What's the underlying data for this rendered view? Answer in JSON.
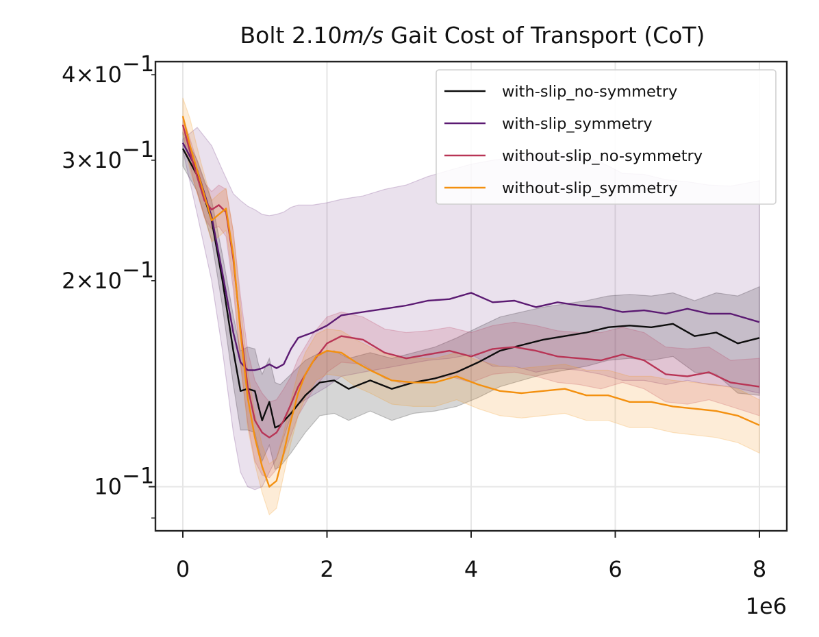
{
  "chart_data": {
    "type": "line",
    "title": "Bolt 2.10m/s Gait Cost of Transport (CoT)",
    "title_parts": {
      "prefix": "Bolt 2.10",
      "unit": "m/s",
      "suffix": " Gait Cost of Transport (CoT)"
    },
    "xlabel": "",
    "ylabel": "",
    "x_offset_label": "1e6",
    "x_scale": 1000000,
    "xlim": [
      -0.38,
      8.38
    ],
    "ylim": [
      0.0862,
      0.418
    ],
    "yscale": "log",
    "x_ticks": [
      {
        "value": 0,
        "label": "0"
      },
      {
        "value": 2,
        "label": "2"
      },
      {
        "value": 4,
        "label": "4"
      },
      {
        "value": 6,
        "label": "6"
      },
      {
        "value": 8,
        "label": "8"
      }
    ],
    "y_major_ticks": [
      {
        "value": 0.1,
        "mantissa": "",
        "exp": "−1"
      }
    ],
    "y_minor_labeled_ticks": [
      {
        "value": 0.2,
        "mantissa": "2×",
        "exp": "−1"
      },
      {
        "value": 0.3,
        "mantissa": "3×",
        "exp": "−1"
      },
      {
        "value": 0.4,
        "mantissa": "4×",
        "exp": "−1"
      }
    ],
    "y_minor_unlabeled_ticks": [
      0.09,
      0.5
    ],
    "grid": true,
    "legend_position": "top-right",
    "series": [
      {
        "name": "with-slip_no-symmetry",
        "color": "#0d0d0d",
        "x": [
          0,
          0.2,
          0.4,
          0.55,
          0.7,
          0.8,
          0.9,
          1.0,
          1.05,
          1.1,
          1.2,
          1.28,
          1.35,
          1.5,
          1.7,
          1.9,
          2.1,
          2.3,
          2.6,
          2.9,
          3.2,
          3.5,
          3.8,
          4.1,
          4.4,
          4.7,
          5.0,
          5.3,
          5.6,
          5.9,
          6.2,
          6.5,
          6.8,
          7.1,
          7.4,
          7.7,
          8.0
        ],
        "values": [
          0.312,
          0.285,
          0.245,
          0.2,
          0.158,
          0.138,
          0.139,
          0.138,
          0.131,
          0.125,
          0.133,
          0.122,
          0.123,
          0.128,
          0.136,
          0.142,
          0.143,
          0.139,
          0.143,
          0.139,
          0.142,
          0.144,
          0.147,
          0.152,
          0.158,
          0.161,
          0.164,
          0.166,
          0.168,
          0.171,
          0.172,
          0.171,
          0.173,
          0.166,
          0.168,
          0.162,
          0.165
        ],
        "band_upper": [
          0.33,
          0.3,
          0.262,
          0.218,
          0.178,
          0.158,
          0.16,
          0.159,
          0.151,
          0.146,
          0.154,
          0.142,
          0.141,
          0.146,
          0.153,
          0.157,
          0.158,
          0.154,
          0.157,
          0.154,
          0.157,
          0.16,
          0.165,
          0.171,
          0.177,
          0.18,
          0.183,
          0.185,
          0.187,
          0.19,
          0.191,
          0.19,
          0.192,
          0.187,
          0.192,
          0.19,
          0.196
        ],
        "band_lower": [
          0.294,
          0.27,
          0.229,
          0.183,
          0.141,
          0.121,
          0.121,
          0.12,
          0.114,
          0.109,
          0.115,
          0.106,
          0.107,
          0.112,
          0.12,
          0.127,
          0.128,
          0.125,
          0.129,
          0.125,
          0.128,
          0.129,
          0.131,
          0.135,
          0.14,
          0.143,
          0.146,
          0.148,
          0.15,
          0.153,
          0.154,
          0.153,
          0.155,
          0.147,
          0.146,
          0.137,
          0.136
        ]
      },
      {
        "name": "with-slip_symmetry",
        "color": "#5b1a72",
        "x": [
          0,
          0.2,
          0.4,
          0.55,
          0.7,
          0.8,
          0.9,
          1.0,
          1.1,
          1.2,
          1.3,
          1.4,
          1.5,
          1.6,
          1.8,
          2.0,
          2.2,
          2.5,
          2.8,
          3.1,
          3.4,
          3.7,
          4.0,
          4.3,
          4.6,
          4.9,
          5.2,
          5.5,
          5.8,
          6.1,
          6.4,
          6.7,
          7.0,
          7.3,
          7.6,
          8.0
        ],
        "values": [
          0.318,
          0.29,
          0.248,
          0.205,
          0.168,
          0.152,
          0.148,
          0.148,
          0.149,
          0.151,
          0.149,
          0.151,
          0.159,
          0.165,
          0.168,
          0.172,
          0.178,
          0.18,
          0.182,
          0.184,
          0.187,
          0.188,
          0.192,
          0.186,
          0.187,
          0.183,
          0.186,
          0.184,
          0.183,
          0.18,
          0.181,
          0.179,
          0.182,
          0.179,
          0.179,
          0.174
        ],
        "band_upper": [
          0.322,
          0.335,
          0.315,
          0.29,
          0.268,
          0.262,
          0.257,
          0.254,
          0.25,
          0.249,
          0.25,
          0.252,
          0.256,
          0.258,
          0.258,
          0.26,
          0.263,
          0.266,
          0.272,
          0.276,
          0.284,
          0.29,
          0.296,
          0.3,
          0.303,
          0.307,
          0.308,
          0.305,
          0.298,
          0.287,
          0.286,
          0.281,
          0.279,
          0.276,
          0.275,
          0.28
        ],
        "band_lower": [
          0.31,
          0.25,
          0.2,
          0.158,
          0.12,
          0.105,
          0.1,
          0.099,
          0.1,
          0.105,
          0.11,
          0.118,
          0.127,
          0.132,
          0.136,
          0.14,
          0.145,
          0.147,
          0.149,
          0.151,
          0.153,
          0.154,
          0.156,
          0.15,
          0.15,
          0.147,
          0.149,
          0.148,
          0.146,
          0.143,
          0.143,
          0.141,
          0.143,
          0.141,
          0.14,
          0.137
        ]
      },
      {
        "name": "without-slip_no-symmetry",
        "color": "#b83455",
        "x": [
          0,
          0.15,
          0.3,
          0.4,
          0.5,
          0.6,
          0.7,
          0.8,
          0.9,
          1.0,
          1.1,
          1.2,
          1.3,
          1.4,
          1.5,
          1.6,
          1.8,
          2.0,
          2.2,
          2.5,
          2.8,
          3.1,
          3.4,
          3.7,
          4.0,
          4.3,
          4.6,
          4.9,
          5.2,
          5.5,
          5.8,
          6.1,
          6.4,
          6.7,
          7.0,
          7.3,
          7.6,
          8.0
        ],
        "values": [
          0.338,
          0.295,
          0.262,
          0.254,
          0.258,
          0.252,
          0.215,
          0.17,
          0.14,
          0.125,
          0.12,
          0.118,
          0.12,
          0.125,
          0.132,
          0.14,
          0.152,
          0.162,
          0.166,
          0.164,
          0.157,
          0.154,
          0.156,
          0.158,
          0.155,
          0.159,
          0.16,
          0.158,
          0.155,
          0.154,
          0.153,
          0.156,
          0.153,
          0.146,
          0.145,
          0.147,
          0.142,
          0.14
        ],
        "band_upper": [
          0.348,
          0.31,
          0.278,
          0.27,
          0.276,
          0.272,
          0.236,
          0.19,
          0.158,
          0.143,
          0.137,
          0.133,
          0.134,
          0.139,
          0.145,
          0.154,
          0.167,
          0.177,
          0.18,
          0.177,
          0.17,
          0.168,
          0.169,
          0.171,
          0.168,
          0.172,
          0.174,
          0.172,
          0.169,
          0.168,
          0.168,
          0.171,
          0.168,
          0.16,
          0.159,
          0.16,
          0.153,
          0.154
        ],
        "band_lower": [
          0.328,
          0.28,
          0.247,
          0.238,
          0.24,
          0.232,
          0.194,
          0.151,
          0.124,
          0.109,
          0.104,
          0.103,
          0.106,
          0.111,
          0.119,
          0.127,
          0.138,
          0.147,
          0.152,
          0.151,
          0.144,
          0.141,
          0.143,
          0.145,
          0.142,
          0.146,
          0.147,
          0.145,
          0.142,
          0.141,
          0.139,
          0.142,
          0.139,
          0.133,
          0.132,
          0.134,
          0.131,
          0.127
        ]
      },
      {
        "name": "without-slip_symmetry",
        "color": "#f3900f",
        "x": [
          0,
          0.1,
          0.25,
          0.4,
          0.5,
          0.6,
          0.7,
          0.8,
          0.9,
          1.0,
          1.1,
          1.2,
          1.3,
          1.4,
          1.5,
          1.6,
          1.7,
          1.85,
          2.0,
          2.2,
          2.4,
          2.6,
          2.9,
          3.2,
          3.5,
          3.8,
          4.1,
          4.4,
          4.7,
          5.0,
          5.3,
          5.6,
          5.9,
          6.2,
          6.5,
          6.8,
          7.1,
          7.4,
          7.7,
          8.0
        ],
        "values": [
          0.348,
          0.315,
          0.278,
          0.245,
          0.25,
          0.255,
          0.218,
          0.168,
          0.135,
          0.118,
          0.107,
          0.1,
          0.102,
          0.112,
          0.125,
          0.137,
          0.146,
          0.155,
          0.158,
          0.157,
          0.152,
          0.148,
          0.143,
          0.142,
          0.142,
          0.145,
          0.141,
          0.138,
          0.137,
          0.138,
          0.139,
          0.136,
          0.136,
          0.133,
          0.133,
          0.131,
          0.13,
          0.129,
          0.127,
          0.123
        ],
        "band_upper": [
          0.37,
          0.345,
          0.298,
          0.262,
          0.268,
          0.273,
          0.236,
          0.184,
          0.148,
          0.128,
          0.115,
          0.108,
          0.11,
          0.12,
          0.134,
          0.147,
          0.157,
          0.167,
          0.17,
          0.169,
          0.164,
          0.16,
          0.155,
          0.154,
          0.154,
          0.157,
          0.153,
          0.15,
          0.149,
          0.15,
          0.151,
          0.148,
          0.148,
          0.145,
          0.145,
          0.143,
          0.142,
          0.141,
          0.139,
          0.134
        ],
        "band_lower": [
          0.328,
          0.29,
          0.258,
          0.228,
          0.232,
          0.237,
          0.2,
          0.152,
          0.122,
          0.108,
          0.098,
          0.091,
          0.093,
          0.104,
          0.116,
          0.127,
          0.135,
          0.143,
          0.146,
          0.145,
          0.14,
          0.137,
          0.132,
          0.131,
          0.131,
          0.134,
          0.13,
          0.127,
          0.126,
          0.127,
          0.128,
          0.125,
          0.125,
          0.122,
          0.122,
          0.12,
          0.119,
          0.118,
          0.116,
          0.112
        ]
      }
    ]
  }
}
